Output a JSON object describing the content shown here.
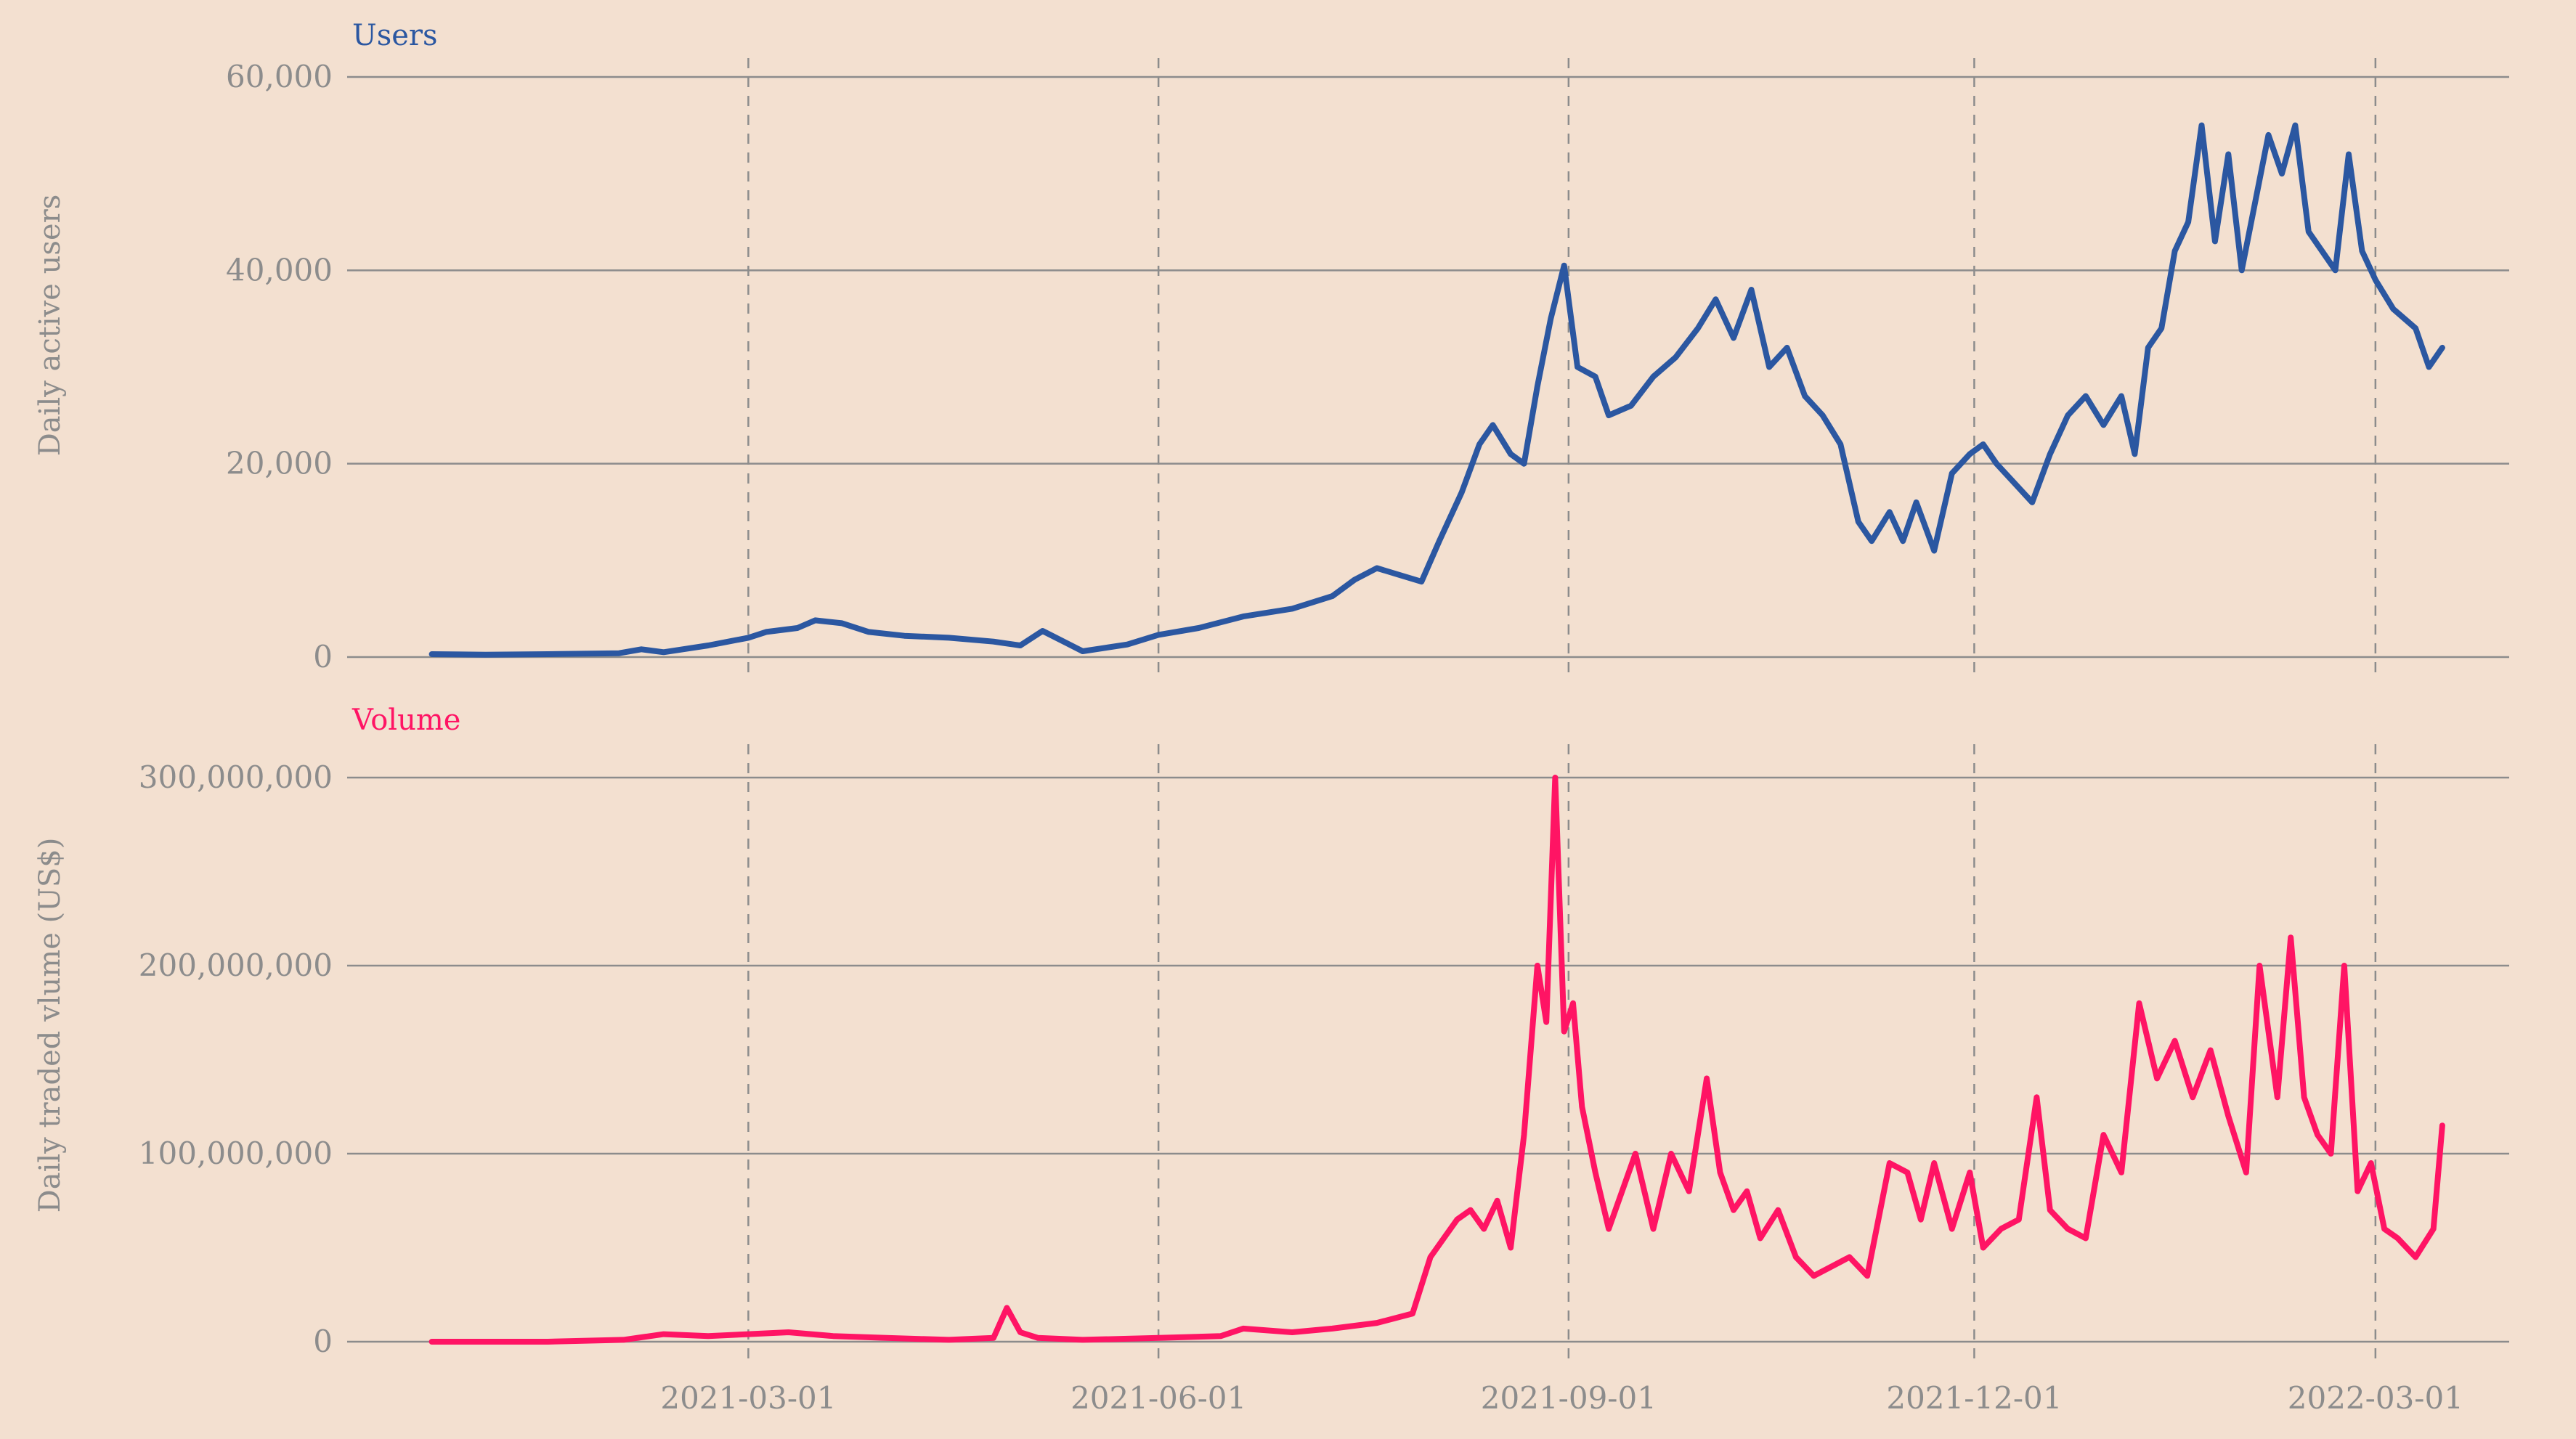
{
  "chart_data": [
    {
      "type": "line",
      "title": "Users",
      "ylabel": "Daily active users",
      "xlabel": "",
      "ylim": [
        0,
        60000
      ],
      "yticks": [
        "0",
        "20,000",
        "40,000",
        "60,000"
      ],
      "ytick_values": [
        0,
        20000,
        40000,
        60000
      ],
      "xlim": [
        "2020-12-01",
        "2022-03-31"
      ],
      "xtick_dates": [
        "2021-03-01",
        "2021-06-01",
        "2021-09-01",
        "2021-12-01",
        "2022-03-01"
      ],
      "grid": "horizontal solid, vertical dashed",
      "color": "#2b57a1",
      "series": [
        {
          "x": [
            "2020-12-20",
            "2021-01-01",
            "2021-01-15",
            "2021-01-31",
            "2021-02-05",
            "2021-02-10",
            "2021-02-20",
            "2021-03-01",
            "2021-03-05",
            "2021-03-12",
            "2021-03-16",
            "2021-03-22",
            "2021-03-28",
            "2021-04-05",
            "2021-04-15",
            "2021-04-25",
            "2021-05-01",
            "2021-05-06",
            "2021-05-15",
            "2021-05-25",
            "2021-06-01",
            "2021-06-10",
            "2021-06-20",
            "2021-07-01",
            "2021-07-10",
            "2021-07-15",
            "2021-07-20",
            "2021-07-25",
            "2021-07-30",
            "2021-08-03",
            "2021-08-08",
            "2021-08-12",
            "2021-08-15",
            "2021-08-19",
            "2021-08-22",
            "2021-08-25",
            "2021-08-28",
            "2021-08-31",
            "2021-09-03",
            "2021-09-07",
            "2021-09-10",
            "2021-09-15",
            "2021-09-20",
            "2021-09-25",
            "2021-09-30",
            "2021-10-04",
            "2021-10-08",
            "2021-10-12",
            "2021-10-16",
            "2021-10-20",
            "2021-10-24",
            "2021-10-28",
            "2021-11-01",
            "2021-11-05",
            "2021-11-08",
            "2021-11-12",
            "2021-11-15",
            "2021-11-18",
            "2021-11-22",
            "2021-11-26",
            "2021-11-30",
            "2021-12-03",
            "2021-12-06",
            "2021-12-10",
            "2021-12-14",
            "2021-12-18",
            "2021-12-22",
            "2021-12-26",
            "2021-12-30",
            "2022-01-03",
            "2022-01-06",
            "2022-01-09",
            "2022-01-12",
            "2022-01-15",
            "2022-01-18",
            "2022-01-21",
            "2022-01-24",
            "2022-01-27",
            "2022-01-30",
            "2022-02-02",
            "2022-02-05",
            "2022-02-08",
            "2022-02-11",
            "2022-02-14",
            "2022-02-17",
            "2022-02-20",
            "2022-02-23",
            "2022-02-26",
            "2022-03-01",
            "2022-03-05",
            "2022-03-10",
            "2022-03-13",
            "2022-03-16"
          ],
          "values": [
            300,
            250,
            300,
            400,
            800,
            500,
            1200,
            2000,
            2600,
            3000,
            3800,
            3500,
            2600,
            2200,
            2000,
            1600,
            1200,
            2700,
            600,
            1300,
            2300,
            3000,
            4200,
            5000,
            6300,
            8000,
            9200,
            8500,
            7800,
            12000,
            17000,
            22000,
            24000,
            21000,
            20000,
            28000,
            35000,
            40500,
            30000,
            29000,
            25000,
            26000,
            29000,
            31000,
            34000,
            37000,
            33000,
            38000,
            30000,
            32000,
            27000,
            25000,
            22000,
            14000,
            12000,
            15000,
            12000,
            16000,
            11000,
            19000,
            21000,
            22000,
            20000,
            18000,
            16000,
            21000,
            25000,
            27000,
            24000,
            27000,
            21000,
            32000,
            34000,
            42000,
            45000,
            55000,
            43000,
            52000,
            40000,
            47000,
            54000,
            50000,
            55000,
            44000,
            42000,
            40000,
            52000,
            42000,
            39000,
            36000,
            34000,
            30000,
            32000
          ]
        }
      ]
    },
    {
      "type": "line",
      "title": "Volume",
      "ylabel": "Daily traded vlume (US$)",
      "xlabel": "",
      "ylim": [
        0,
        300000000
      ],
      "yticks": [
        "0",
        "100,000,000",
        "200,000,000",
        "300,000,000"
      ],
      "ytick_values": [
        0,
        100000000,
        200000000,
        300000000
      ],
      "xlim": [
        "2020-12-01",
        "2022-03-31"
      ],
      "xtick_labels": [
        "2021-03-01",
        "2021-06-01",
        "2021-09-01",
        "2021-12-01",
        "2022-03-01"
      ],
      "grid": "horizontal solid, vertical dashed",
      "color": "#ff1464",
      "series": [
        {
          "x": [
            "2020-12-20",
            "2021-01-15",
            "2021-02-01",
            "2021-02-10",
            "2021-02-20",
            "2021-03-01",
            "2021-03-10",
            "2021-03-20",
            "2021-04-01",
            "2021-04-15",
            "2021-04-25",
            "2021-04-28",
            "2021-05-01",
            "2021-05-05",
            "2021-05-15",
            "2021-06-01",
            "2021-06-15",
            "2021-06-20",
            "2021-07-01",
            "2021-07-10",
            "2021-07-20",
            "2021-07-28",
            "2021-08-01",
            "2021-08-04",
            "2021-08-07",
            "2021-08-10",
            "2021-08-13",
            "2021-08-16",
            "2021-08-19",
            "2021-08-22",
            "2021-08-25",
            "2021-08-27",
            "2021-08-29",
            "2021-08-31",
            "2021-09-02",
            "2021-09-04",
            "2021-09-07",
            "2021-09-10",
            "2021-09-13",
            "2021-09-16",
            "2021-09-20",
            "2021-09-24",
            "2021-09-28",
            "2021-10-02",
            "2021-10-05",
            "2021-10-08",
            "2021-10-11",
            "2021-10-14",
            "2021-10-18",
            "2021-10-22",
            "2021-10-26",
            "2021-10-30",
            "2021-11-03",
            "2021-11-07",
            "2021-11-12",
            "2021-11-16",
            "2021-11-19",
            "2021-11-22",
            "2021-11-26",
            "2021-11-30",
            "2021-12-03",
            "2021-12-07",
            "2021-12-11",
            "2021-12-15",
            "2021-12-18",
            "2021-12-22",
            "2021-12-26",
            "2021-12-30",
            "2022-01-03",
            "2022-01-07",
            "2022-01-11",
            "2022-01-15",
            "2022-01-19",
            "2022-01-23",
            "2022-01-27",
            "2022-01-31",
            "2022-02-03",
            "2022-02-07",
            "2022-02-10",
            "2022-02-13",
            "2022-02-16",
            "2022-02-19",
            "2022-02-22",
            "2022-02-25",
            "2022-02-28",
            "2022-03-03",
            "2022-03-06",
            "2022-03-10",
            "2022-03-14",
            "2022-03-16"
          ],
          "values": [
            0,
            0,
            1000000,
            4000000,
            3000000,
            4000000,
            5000000,
            3000000,
            2000000,
            1000000,
            2000000,
            18000000,
            5000000,
            2000000,
            1000000,
            2000000,
            3000000,
            7000000,
            5000000,
            7000000,
            10000000,
            15000000,
            45000000,
            55000000,
            65000000,
            70000000,
            60000000,
            75000000,
            50000000,
            110000000,
            200000000,
            170000000,
            300000000,
            165000000,
            180000000,
            125000000,
            90000000,
            60000000,
            80000000,
            100000000,
            60000000,
            100000000,
            80000000,
            140000000,
            90000000,
            70000000,
            80000000,
            55000000,
            70000000,
            45000000,
            35000000,
            40000000,
            45000000,
            35000000,
            95000000,
            90000000,
            65000000,
            95000000,
            60000000,
            90000000,
            50000000,
            60000000,
            65000000,
            130000000,
            70000000,
            60000000,
            55000000,
            110000000,
            90000000,
            180000000,
            140000000,
            160000000,
            130000000,
            155000000,
            120000000,
            90000000,
            200000000,
            130000000,
            215000000,
            130000000,
            110000000,
            100000000,
            200000000,
            80000000,
            95000000,
            60000000,
            55000000,
            45000000,
            60000000,
            115000000
          ]
        }
      ]
    }
  ]
}
